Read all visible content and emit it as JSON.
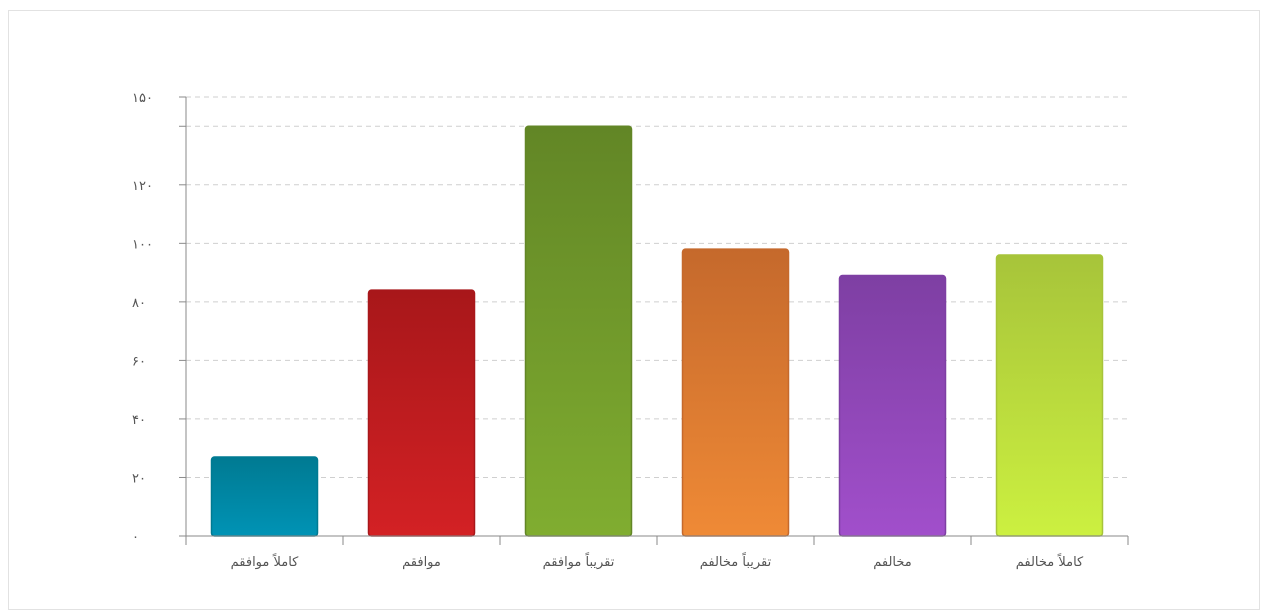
{
  "chart_data": {
    "type": "bar",
    "categories": [
      "كاملاً موافقم",
      "موافقم",
      "تقريباً موافقم",
      "تقريباً مخالفم",
      "مخالفم",
      "كاملاً مخالفم"
    ],
    "values": [
      27,
      84,
      140,
      98,
      89,
      96
    ],
    "colors": [
      [
        "#007a92",
        "#0093b5"
      ],
      [
        "#a8171a",
        "#d32124"
      ],
      [
        "#628626",
        "#80ad30"
      ],
      [
        "#c5692c",
        "#ef8a36"
      ],
      [
        "#7e3fa3",
        "#a14fcb"
      ],
      [
        "#a7c43a",
        "#ccf040"
      ]
    ],
    "ylim": [
      0,
      150
    ],
    "yticks": [
      0,
      20,
      40,
      60,
      80,
      100,
      120,
      150
    ],
    "ytick_labels": [
      "۰",
      "۲۰",
      "۴۰",
      "۶۰",
      "۸۰",
      "۱۰۰",
      "۱۲۰",
      "۱۵۰"
    ],
    "extra_gridlines": [
      140
    ],
    "grid": true,
    "title": "",
    "xlabel": "",
    "ylabel": ""
  }
}
